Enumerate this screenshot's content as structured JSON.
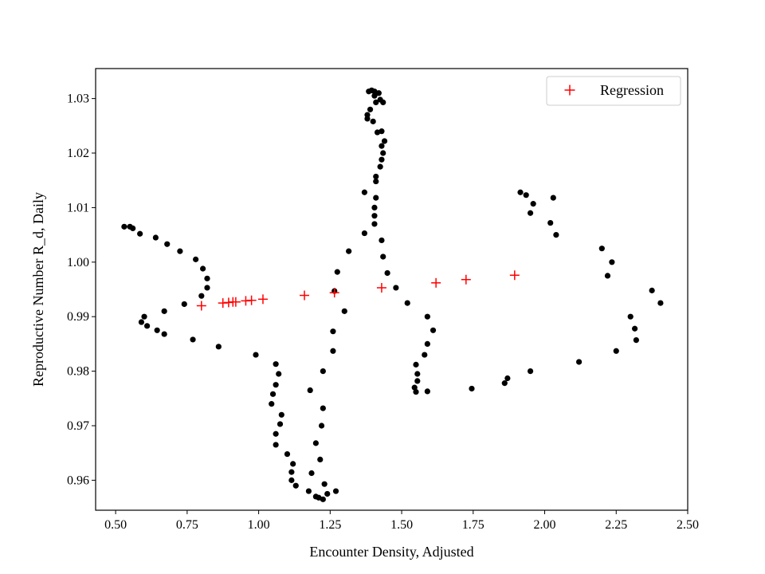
{
  "chart_data": {
    "type": "scatter",
    "title": "",
    "xlabel": "Encounter Density, Adjusted",
    "ylabel": "Reproductive Number R_d, Daily",
    "xlim": [
      0.43,
      2.5
    ],
    "ylim": [
      0.9545,
      1.0355
    ],
    "xticks": [
      "0.50",
      "0.75",
      "1.00",
      "1.25",
      "1.50",
      "1.75",
      "2.00",
      "2.25",
      "2.50"
    ],
    "yticks": [
      "0.96",
      "0.97",
      "0.98",
      "0.99",
      "1.00",
      "1.01",
      "1.02",
      "1.03"
    ],
    "grid": false,
    "legend_position": "top-right",
    "series": [
      {
        "name": "",
        "marker": "circle",
        "color": "#000000",
        "points": [
          [
            0.53,
            1.0065
          ],
          [
            0.55,
            1.0065
          ],
          [
            0.56,
            1.0062
          ],
          [
            0.585,
            1.0052
          ],
          [
            0.64,
            1.0045
          ],
          [
            0.68,
            1.0033
          ],
          [
            0.725,
            1.002
          ],
          [
            0.78,
            1.0005
          ],
          [
            0.805,
            0.9988
          ],
          [
            0.82,
            0.997
          ],
          [
            0.82,
            0.9953
          ],
          [
            0.8,
            0.9938
          ],
          [
            0.74,
            0.9923
          ],
          [
            0.67,
            0.991
          ],
          [
            0.6,
            0.99
          ],
          [
            0.59,
            0.989
          ],
          [
            0.61,
            0.9883
          ],
          [
            0.645,
            0.9875
          ],
          [
            0.67,
            0.9868
          ],
          [
            0.77,
            0.9858
          ],
          [
            0.86,
            0.9845
          ],
          [
            0.99,
            0.983
          ],
          [
            1.06,
            0.9813
          ],
          [
            1.07,
            0.9795
          ],
          [
            1.06,
            0.9775
          ],
          [
            1.05,
            0.9758
          ],
          [
            1.045,
            0.974
          ],
          [
            1.08,
            0.972
          ],
          [
            1.075,
            0.9703
          ],
          [
            1.06,
            0.9685
          ],
          [
            1.06,
            0.9665
          ],
          [
            1.1,
            0.9648
          ],
          [
            1.12,
            0.963
          ],
          [
            1.115,
            0.9615
          ],
          [
            1.115,
            0.96
          ],
          [
            1.13,
            0.959
          ],
          [
            1.175,
            0.958
          ],
          [
            1.2,
            0.957
          ],
          [
            1.21,
            0.9568
          ],
          [
            1.225,
            0.9565
          ],
          [
            1.24,
            0.9575
          ],
          [
            1.27,
            0.958
          ],
          [
            1.23,
            0.9593
          ],
          [
            1.185,
            0.9613
          ],
          [
            1.215,
            0.9638
          ],
          [
            1.2,
            0.9668
          ],
          [
            1.22,
            0.97
          ],
          [
            1.225,
            0.9732
          ],
          [
            1.18,
            0.9765
          ],
          [
            1.225,
            0.98
          ],
          [
            1.26,
            0.9837
          ],
          [
            1.26,
            0.9873
          ],
          [
            1.3,
            0.991
          ],
          [
            1.265,
            0.9947
          ],
          [
            1.275,
            0.9982
          ],
          [
            1.315,
            1.002
          ],
          [
            1.37,
            1.0053
          ],
          [
            1.405,
            1.007
          ],
          [
            1.405,
            1.0085
          ],
          [
            1.405,
            1.01
          ],
          [
            1.41,
            1.0118
          ],
          [
            1.37,
            1.0128
          ],
          [
            1.41,
            1.0148
          ],
          [
            1.41,
            1.0157
          ],
          [
            1.425,
            1.0175
          ],
          [
            1.43,
            1.0188
          ],
          [
            1.435,
            1.02
          ],
          [
            1.43,
            1.0213
          ],
          [
            1.44,
            1.0222
          ],
          [
            1.43,
            1.024
          ],
          [
            1.415,
            1.0238
          ],
          [
            1.4,
            1.0258
          ],
          [
            1.38,
            1.0263
          ],
          [
            1.38,
            1.027
          ],
          [
            1.39,
            1.028
          ],
          [
            1.41,
            1.0293
          ],
          [
            1.435,
            1.0293
          ],
          [
            1.425,
            1.0298
          ],
          [
            1.405,
            1.0305
          ],
          [
            1.385,
            1.0313
          ],
          [
            1.395,
            1.0315
          ],
          [
            1.405,
            1.0313
          ],
          [
            1.42,
            1.031
          ],
          [
            1.43,
            1.004
          ],
          [
            1.435,
            1.001
          ],
          [
            1.45,
            0.998
          ],
          [
            1.48,
            0.9953
          ],
          [
            1.52,
            0.9925
          ],
          [
            1.59,
            0.99
          ],
          [
            1.61,
            0.9875
          ],
          [
            1.59,
            0.985
          ],
          [
            1.58,
            0.983
          ],
          [
            1.55,
            0.9812
          ],
          [
            1.555,
            0.9795
          ],
          [
            1.555,
            0.9782
          ],
          [
            1.545,
            0.977
          ],
          [
            1.55,
            0.9762
          ],
          [
            1.59,
            0.9763
          ],
          [
            1.745,
            0.9768
          ],
          [
            1.86,
            0.9778
          ],
          [
            1.87,
            0.9787
          ],
          [
            1.95,
            0.98
          ],
          [
            2.12,
            0.9817
          ],
          [
            2.25,
            0.9837
          ],
          [
            2.32,
            0.9857
          ],
          [
            2.315,
            0.9878
          ],
          [
            2.3,
            0.99
          ],
          [
            2.405,
            0.9925
          ],
          [
            2.375,
            0.9948
          ],
          [
            2.22,
            0.9975
          ],
          [
            2.235,
            1.0
          ],
          [
            2.2,
            1.0025
          ],
          [
            2.04,
            1.005
          ],
          [
            2.02,
            1.0072
          ],
          [
            1.95,
            1.009
          ],
          [
            1.96,
            1.0107
          ],
          [
            2.03,
            1.0118
          ],
          [
            1.935,
            1.0123
          ],
          [
            1.915,
            1.0128
          ]
        ]
      },
      {
        "name": "Regression",
        "marker": "plus",
        "color": "#ff0000",
        "points": [
          [
            0.8,
            0.992
          ],
          [
            0.875,
            0.9925
          ],
          [
            0.895,
            0.9926
          ],
          [
            0.91,
            0.9927
          ],
          [
            0.92,
            0.9927
          ],
          [
            0.955,
            0.9929
          ],
          [
            0.975,
            0.993
          ],
          [
            1.015,
            0.9932
          ],
          [
            1.16,
            0.9939
          ],
          [
            1.265,
            0.9944
          ],
          [
            1.43,
            0.9953
          ],
          [
            1.62,
            0.9962
          ],
          [
            1.725,
            0.9968
          ],
          [
            1.895,
            0.9976
          ]
        ]
      }
    ]
  }
}
